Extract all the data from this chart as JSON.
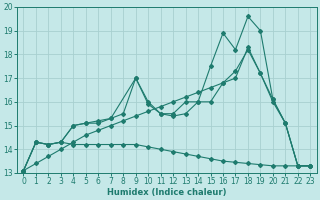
{
  "xlabel": "Humidex (Indice chaleur)",
  "bg_color": "#c5e8e8",
  "grid_color": "#a8d0d0",
  "line_color": "#1e7b6e",
  "xlim": [
    -0.5,
    23.5
  ],
  "ylim": [
    13,
    20
  ],
  "yticks": [
    13,
    14,
    15,
    16,
    17,
    18,
    19,
    20
  ],
  "xticks": [
    0,
    1,
    2,
    3,
    4,
    5,
    6,
    7,
    8,
    9,
    10,
    11,
    12,
    13,
    14,
    15,
    16,
    17,
    18,
    19,
    20,
    21,
    22,
    23
  ],
  "line1_x": [
    0,
    1,
    2,
    3,
    4,
    5,
    6,
    7,
    8,
    9,
    10,
    11,
    12,
    13,
    14,
    15,
    16,
    17,
    18,
    19,
    20,
    21,
    22,
    23
  ],
  "line1_y": [
    13.1,
    14.3,
    14.2,
    14.3,
    14.2,
    14.2,
    14.2,
    14.2,
    14.2,
    14.2,
    14.1,
    14.0,
    13.9,
    13.8,
    13.7,
    13.6,
    13.5,
    13.45,
    13.4,
    13.35,
    13.3,
    13.3,
    13.3,
    13.3
  ],
  "line2_x": [
    0,
    1,
    2,
    3,
    4,
    5,
    6,
    7,
    9,
    10,
    11,
    12,
    13,
    14,
    15,
    16,
    17,
    18,
    19,
    20,
    21,
    22,
    23
  ],
  "line2_y": [
    13.1,
    14.3,
    14.2,
    14.3,
    15.0,
    15.1,
    15.1,
    15.3,
    17.0,
    15.9,
    15.5,
    15.4,
    15.5,
    16.0,
    16.0,
    16.8,
    17.3,
    18.2,
    17.2,
    16.0,
    15.1,
    13.3,
    13.3
  ],
  "line3_x": [
    0,
    1,
    2,
    3,
    4,
    5,
    6,
    7,
    8,
    9,
    10,
    11,
    12,
    13,
    14,
    15,
    16,
    17,
    18,
    19,
    20,
    21,
    22,
    23
  ],
  "line3_y": [
    13.1,
    14.3,
    14.2,
    14.3,
    15.0,
    15.1,
    15.2,
    15.3,
    15.5,
    17.0,
    16.0,
    15.5,
    15.5,
    16.0,
    16.0,
    17.5,
    18.9,
    18.2,
    19.6,
    19.0,
    16.1,
    15.1,
    13.3,
    13.3
  ],
  "line4_x": [
    0,
    1,
    2,
    3,
    4,
    5,
    6,
    7,
    8,
    9,
    10,
    11,
    12,
    13,
    14,
    15,
    16,
    17,
    18,
    19,
    20,
    21,
    22,
    23
  ],
  "line4_y": [
    13.1,
    13.4,
    13.7,
    14.0,
    14.3,
    14.6,
    14.8,
    15.0,
    15.2,
    15.4,
    15.6,
    15.8,
    16.0,
    16.2,
    16.4,
    16.6,
    16.8,
    17.0,
    18.3,
    17.2,
    16.1,
    15.1,
    13.3,
    13.3
  ]
}
